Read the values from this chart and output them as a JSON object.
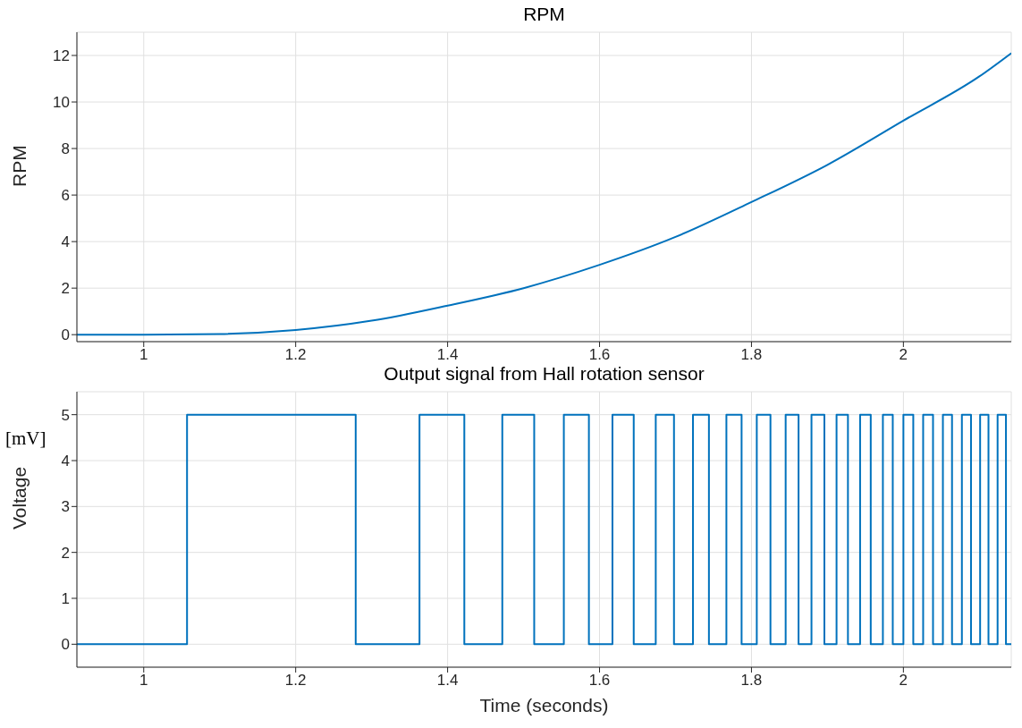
{
  "chart_data": [
    {
      "type": "line",
      "title": "RPM",
      "ylabel": "RPM",
      "series": [
        {
          "color": "#0072bd",
          "x": [
            0.912,
            1.0,
            1.1,
            1.2,
            1.3,
            1.4,
            1.5,
            1.6,
            1.7,
            1.8,
            1.9,
            2.0,
            2.1,
            2.142
          ],
          "values": [
            0,
            0,
            0.03,
            0.2,
            0.6,
            1.25,
            2.0,
            3.0,
            4.2,
            5.7,
            7.3,
            9.2,
            11.1,
            12.1
          ]
        }
      ],
      "xlim": [
        0.912,
        2.142
      ],
      "xticks": [
        1,
        1.2,
        1.4,
        1.6,
        1.8,
        2
      ],
      "ylim": [
        -0.3,
        13
      ],
      "yticks": [
        0,
        2,
        4,
        6,
        8,
        10,
        12
      ],
      "grid": true
    },
    {
      "type": "step",
      "title": "Output signal from Hall rotation sensor",
      "xlabel": "Time (seconds)",
      "ylabel": "Voltage",
      "annotations": [
        "[mV]"
      ],
      "series": [
        {
          "color": "#0072bd",
          "x": [
            0.912,
            1.057,
            1.279,
            1.363,
            1.422,
            1.472,
            1.514,
            1.553,
            1.586,
            1.617,
            1.645,
            1.674,
            1.698,
            1.723,
            1.744,
            1.767,
            1.787,
            1.807,
            1.825,
            1.845,
            1.862,
            1.879,
            1.896,
            1.912,
            1.927,
            1.943,
            1.957,
            1.973,
            1.986,
            2.0,
            2.013,
            2.026,
            2.039,
            2.052,
            2.064,
            2.077,
            2.089,
            2.101,
            2.112,
            2.124,
            2.135,
            2.142
          ],
          "values": [
            0,
            5,
            0,
            5,
            0,
            5,
            0,
            5,
            0,
            5,
            0,
            5,
            0,
            5,
            0,
            5,
            0,
            5,
            0,
            5,
            0,
            5,
            0,
            5,
            0,
            5,
            0,
            5,
            0,
            5,
            0,
            5,
            0,
            5,
            0,
            5,
            0,
            5,
            0,
            5,
            0,
            0
          ]
        }
      ],
      "xlim": [
        0.912,
        2.142
      ],
      "xticks": [
        1,
        1.2,
        1.4,
        1.6,
        1.8,
        2
      ],
      "ylim": [
        -0.5,
        5.5
      ],
      "yticks": [
        0,
        1,
        2,
        3,
        4,
        5
      ],
      "grid": true
    }
  ]
}
